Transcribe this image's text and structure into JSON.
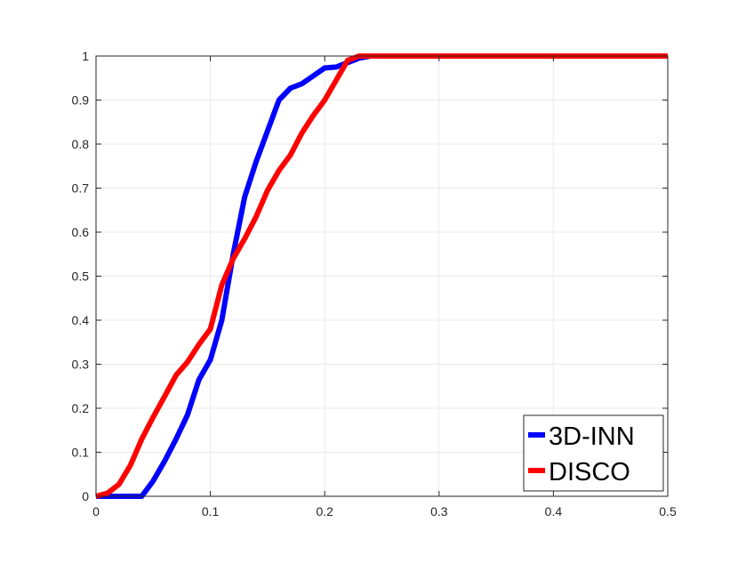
{
  "chart_data": {
    "type": "line",
    "title": "",
    "xlabel": "",
    "ylabel": "",
    "xlim": [
      0,
      0.5
    ],
    "ylim": [
      0,
      1
    ],
    "xticks": [
      "0",
      "0.1",
      "0.2",
      "0.3",
      "0.4",
      "0.5"
    ],
    "yticks": [
      "0",
      "0.1",
      "0.2",
      "0.3",
      "0.4",
      "0.5",
      "0.6",
      "0.7",
      "0.8",
      "0.9",
      "1"
    ],
    "grid": true,
    "legend_position": "bottom-right",
    "series": [
      {
        "name": "3D-INN",
        "color": "#0000ff",
        "x": [
          0,
          0.01,
          0.02,
          0.03,
          0.04,
          0.05,
          0.06,
          0.07,
          0.08,
          0.09,
          0.1,
          0.11,
          0.12,
          0.13,
          0.14,
          0.15,
          0.16,
          0.17,
          0.18,
          0.19,
          0.2,
          0.21,
          0.22,
          0.23,
          0.24,
          0.25,
          0.3,
          0.4,
          0.5
        ],
        "y": [
          0,
          0,
          0,
          0,
          0,
          0.035,
          0.08,
          0.13,
          0.185,
          0.265,
          0.31,
          0.4,
          0.55,
          0.68,
          0.76,
          0.83,
          0.9,
          0.927,
          0.937,
          0.955,
          0.973,
          0.975,
          0.985,
          0.995,
          1,
          1,
          1,
          1,
          1
        ]
      },
      {
        "name": "DISCO",
        "color": "#ff0000",
        "x": [
          0,
          0.01,
          0.02,
          0.03,
          0.04,
          0.05,
          0.06,
          0.07,
          0.08,
          0.09,
          0.1,
          0.11,
          0.12,
          0.13,
          0.14,
          0.15,
          0.16,
          0.17,
          0.18,
          0.19,
          0.2,
          0.21,
          0.22,
          0.23,
          0.24,
          0.25,
          0.3,
          0.4,
          0.5
        ],
        "y": [
          0,
          0.007,
          0.027,
          0.07,
          0.13,
          0.18,
          0.227,
          0.275,
          0.305,
          0.345,
          0.38,
          0.48,
          0.54,
          0.585,
          0.635,
          0.695,
          0.74,
          0.775,
          0.825,
          0.865,
          0.9,
          0.945,
          0.99,
          1,
          1,
          1,
          1,
          1,
          1
        ]
      }
    ]
  }
}
